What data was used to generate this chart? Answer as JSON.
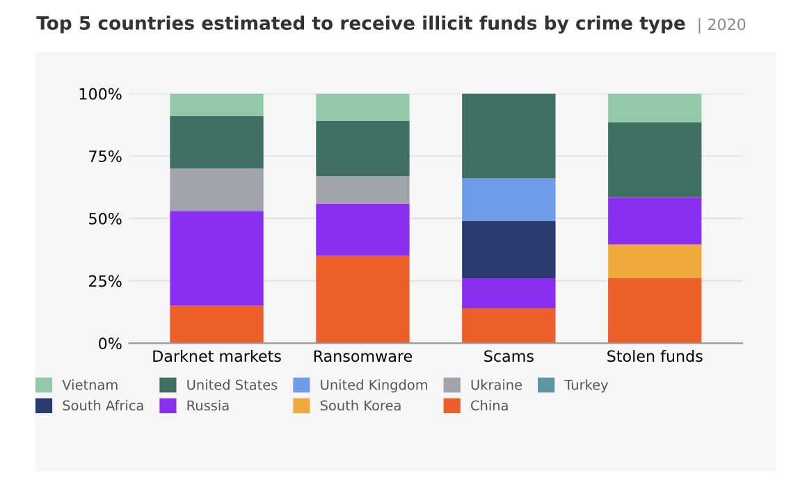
{
  "chart_data": {
    "type": "bar",
    "stacked": true,
    "title": "Top 5 countries estimated to receive illicit funds by crime type",
    "subtitle": "| 2020",
    "categories": [
      "Darknet markets",
      "Ransomware",
      "Scams",
      "Stolen funds"
    ],
    "series": [
      {
        "name": "China",
        "color": "#ec5e2a",
        "values": [
          15,
          35,
          14,
          26
        ]
      },
      {
        "name": "South Korea",
        "color": "#f0aa3c",
        "values": [
          null,
          null,
          null,
          13.5
        ]
      },
      {
        "name": "Russia",
        "color": "#8a2ff0",
        "values": [
          38,
          21,
          12,
          19
        ]
      },
      {
        "name": "South Africa",
        "color": "#283a6e",
        "values": [
          null,
          null,
          23,
          null
        ]
      },
      {
        "name": "Turkey",
        "color": "#5f95a3",
        "values": [
          null,
          null,
          null,
          null
        ]
      },
      {
        "name": "Ukraine",
        "color": "#a0a4aa",
        "values": [
          17,
          11,
          null,
          null
        ]
      },
      {
        "name": "United Kingdom",
        "color": "#6f9ce8",
        "values": [
          null,
          null,
          17,
          null
        ]
      },
      {
        "name": "United States",
        "color": "#3f6f61",
        "values": [
          21,
          22,
          34,
          30
        ]
      },
      {
        "name": "Vietnam",
        "color": "#93c9a8",
        "values": [
          9,
          11,
          null,
          11.5
        ]
      }
    ],
    "ylim": [
      0,
      100
    ],
    "yticks": [
      {
        "value": 0,
        "label": "0%"
      },
      {
        "value": 25,
        "label": "25%"
      },
      {
        "value": 50,
        "label": "50%"
      },
      {
        "value": 75,
        "label": "75%"
      },
      {
        "value": 100,
        "label": "100%"
      }
    ],
    "grid": "y",
    "legend": "bottom"
  }
}
